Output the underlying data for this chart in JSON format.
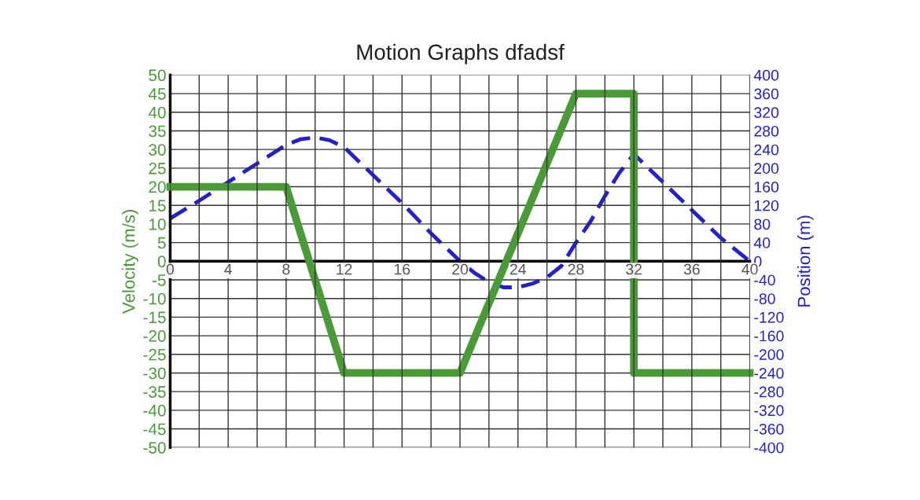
{
  "chart_data": {
    "type": "line",
    "title": "Motion Graphs dfadsf",
    "ylabel": "Velocity (m/s)",
    "y2label": "Position (m)",
    "xlim": [
      0,
      40
    ],
    "xticks": [
      0,
      {
        "value": 2,
        "label": null
      },
      4,
      {
        "value": 6,
        "label": null
      },
      8,
      {
        "value": 10,
        "label": null
      },
      12,
      {
        "value": 14,
        "label": null
      },
      16,
      {
        "value": 18,
        "label": null
      },
      20,
      {
        "value": 22,
        "label": null
      },
      24,
      {
        "value": 26,
        "label": null
      },
      28,
      {
        "value": 30,
        "label": null
      },
      32,
      {
        "value": 34,
        "label": null
      },
      36,
      {
        "value": 38,
        "label": null
      },
      40
    ],
    "ylim": [
      -50,
      50
    ],
    "yticks": [
      -50,
      -45,
      -40,
      -35,
      -30,
      -25,
      -20,
      -15,
      -10,
      -5,
      0,
      5,
      10,
      15,
      20,
      25,
      30,
      35,
      40,
      45,
      50
    ],
    "y2lim": [
      -400,
      400
    ],
    "y2ticks": [
      -400,
      -360,
      -320,
      -280,
      -240,
      -200,
      -160,
      -120,
      -80,
      -40,
      0,
      40,
      80,
      120,
      160,
      200,
      240,
      280,
      320,
      360,
      400
    ],
    "grid": true,
    "series": [
      {
        "color": "#4a9a38",
        "line_style": "solid",
        "x": [
          0,
          8,
          12,
          20,
          28,
          32,
          32,
          40
        ],
        "values": [
          20,
          20,
          -30,
          -30,
          45,
          45,
          -30,
          -30
        ]
      },
      {
        "color": "#2222cc",
        "line_style": "dashed",
        "axis": "y2",
        "x": [
          0,
          2,
          4,
          6,
          8,
          9,
          10,
          11,
          12,
          14,
          16,
          18,
          20,
          21,
          22,
          23,
          24,
          25,
          26,
          27,
          28,
          29,
          30,
          31,
          32,
          34,
          36,
          38,
          40
        ],
        "values": [
          92,
          130,
          170,
          210,
          250,
          262,
          266,
          260,
          245,
          185,
          125,
          60,
          0,
          -25,
          -45,
          -56,
          -56,
          -48,
          -35,
          -10,
          40,
          85,
          140,
          190,
          230,
          170,
          110,
          50,
          0
        ]
      }
    ]
  }
}
